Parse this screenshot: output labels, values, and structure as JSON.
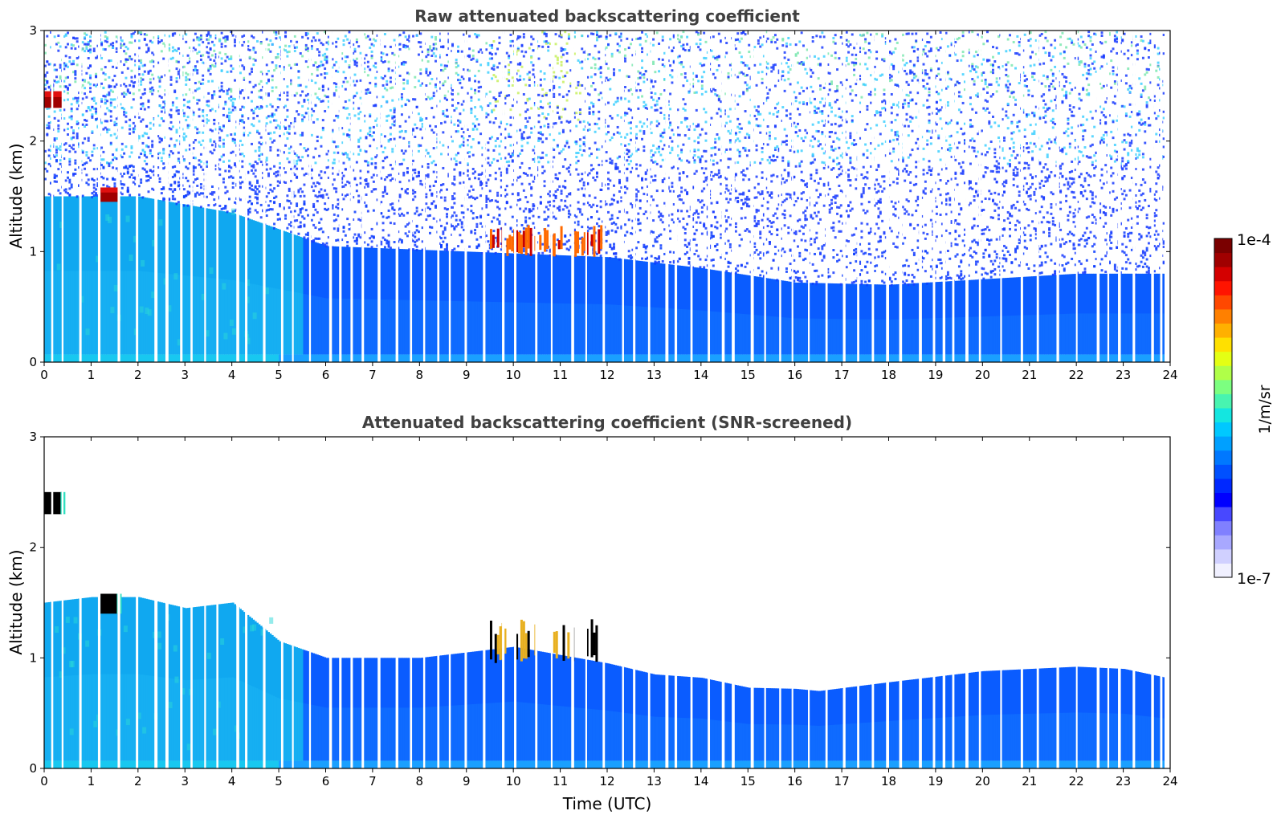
{
  "chart_data": [
    {
      "type": "heatmap",
      "title": "Raw attenuated backscattering coefficient",
      "xlabel": "",
      "ylabel": "Altitude (km)",
      "xlim": [
        0,
        24
      ],
      "ylim": [
        0,
        3
      ],
      "xticks": [
        "0",
        "1",
        "2",
        "3",
        "4",
        "5",
        "6",
        "7",
        "8",
        "9",
        "10",
        "11",
        "12",
        "13",
        "14",
        "15",
        "16",
        "17",
        "18",
        "19",
        "20",
        "21",
        "22",
        "23",
        "24"
      ],
      "yticks": [
        "0",
        "1",
        "2",
        "3"
      ],
      "features": [
        {
          "time_start": 0.0,
          "time_end": 0.4,
          "alt_bottom": 2.3,
          "alt_top": 2.45,
          "level": "high"
        },
        {
          "time_start": 1.2,
          "time_end": 1.6,
          "alt_bottom": 1.45,
          "alt_top": 1.58,
          "level": "high"
        },
        {
          "time_start": 9.5,
          "time_end": 11.9,
          "alt_bottom": 0.95,
          "alt_top": 1.25,
          "level": "high"
        }
      ],
      "boundary_layer_top_km": [
        {
          "time": 0,
          "alt": 1.5
        },
        {
          "time": 2,
          "alt": 1.5
        },
        {
          "time": 4,
          "alt": 1.35
        },
        {
          "time": 5,
          "alt": 1.2
        },
        {
          "time": 6,
          "alt": 1.05
        },
        {
          "time": 9,
          "alt": 1.0
        },
        {
          "time": 12,
          "alt": 0.95
        },
        {
          "time": 14,
          "alt": 0.85
        },
        {
          "time": 16,
          "alt": 0.72
        },
        {
          "time": 18,
          "alt": 0.7
        },
        {
          "time": 20,
          "alt": 0.75
        },
        {
          "time": 22,
          "alt": 0.8
        },
        {
          "time": 23.9,
          "alt": 0.8
        }
      ]
    },
    {
      "type": "heatmap",
      "title": "Attenuated backscattering coefficient (SNR-screened)",
      "xlabel": "Time (UTC)",
      "ylabel": "Altitude (km)",
      "xlim": [
        0,
        24
      ],
      "ylim": [
        0,
        3
      ],
      "xticks": [
        "0",
        "1",
        "2",
        "3",
        "4",
        "5",
        "6",
        "7",
        "8",
        "9",
        "10",
        "11",
        "12",
        "13",
        "14",
        "15",
        "16",
        "17",
        "18",
        "19",
        "20",
        "21",
        "22",
        "23",
        "24"
      ],
      "yticks": [
        "0",
        "1",
        "2",
        "3"
      ],
      "features": [
        {
          "time_start": 0.0,
          "time_end": 0.4,
          "alt_bottom": 2.3,
          "alt_top": 2.5,
          "level": "saturated"
        },
        {
          "time_start": 1.2,
          "time_end": 1.6,
          "alt_bottom": 1.4,
          "alt_top": 1.58,
          "level": "saturated"
        },
        {
          "time_start": 9.5,
          "time_end": 11.9,
          "alt_bottom": 0.95,
          "alt_top": 1.35,
          "level": "high"
        }
      ],
      "signal_top_km": [
        {
          "time": 0,
          "alt": 1.5
        },
        {
          "time": 1,
          "alt": 1.55
        },
        {
          "time": 2,
          "alt": 1.55
        },
        {
          "time": 3,
          "alt": 1.45
        },
        {
          "time": 4,
          "alt": 1.5
        },
        {
          "time": 5,
          "alt": 1.15
        },
        {
          "time": 6,
          "alt": 1.0
        },
        {
          "time": 8,
          "alt": 1.0
        },
        {
          "time": 9,
          "alt": 1.05
        },
        {
          "time": 10,
          "alt": 1.1
        },
        {
          "time": 12,
          "alt": 0.95
        },
        {
          "time": 13,
          "alt": 0.85
        },
        {
          "time": 14,
          "alt": 0.82
        },
        {
          "time": 15,
          "alt": 0.73
        },
        {
          "time": 16,
          "alt": 0.72
        },
        {
          "time": 16.5,
          "alt": 0.7
        },
        {
          "time": 18,
          "alt": 0.78
        },
        {
          "time": 19,
          "alt": 0.83
        },
        {
          "time": 20,
          "alt": 0.88
        },
        {
          "time": 21,
          "alt": 0.9
        },
        {
          "time": 22,
          "alt": 0.92
        },
        {
          "time": 23,
          "alt": 0.9
        },
        {
          "time": 23.9,
          "alt": 0.82
        }
      ]
    }
  ],
  "colorbar": {
    "label": "1/m/sr",
    "min_label": "1e-7",
    "max_label": "1e-4",
    "colors": [
      "#f0f0ff",
      "#d0d0ff",
      "#a8a8ff",
      "#8080ff",
      "#4848ff",
      "#0000ff",
      "#0028ff",
      "#0050ff",
      "#0078ff",
      "#00a0ff",
      "#00c8ff",
      "#14e6e0",
      "#48f4b0",
      "#7cff80",
      "#b0ff48",
      "#e4ff14",
      "#ffe000",
      "#ffb000",
      "#ff8000",
      "#ff4800",
      "#ff1400",
      "#d40000",
      "#a00000",
      "#7a0000"
    ]
  }
}
